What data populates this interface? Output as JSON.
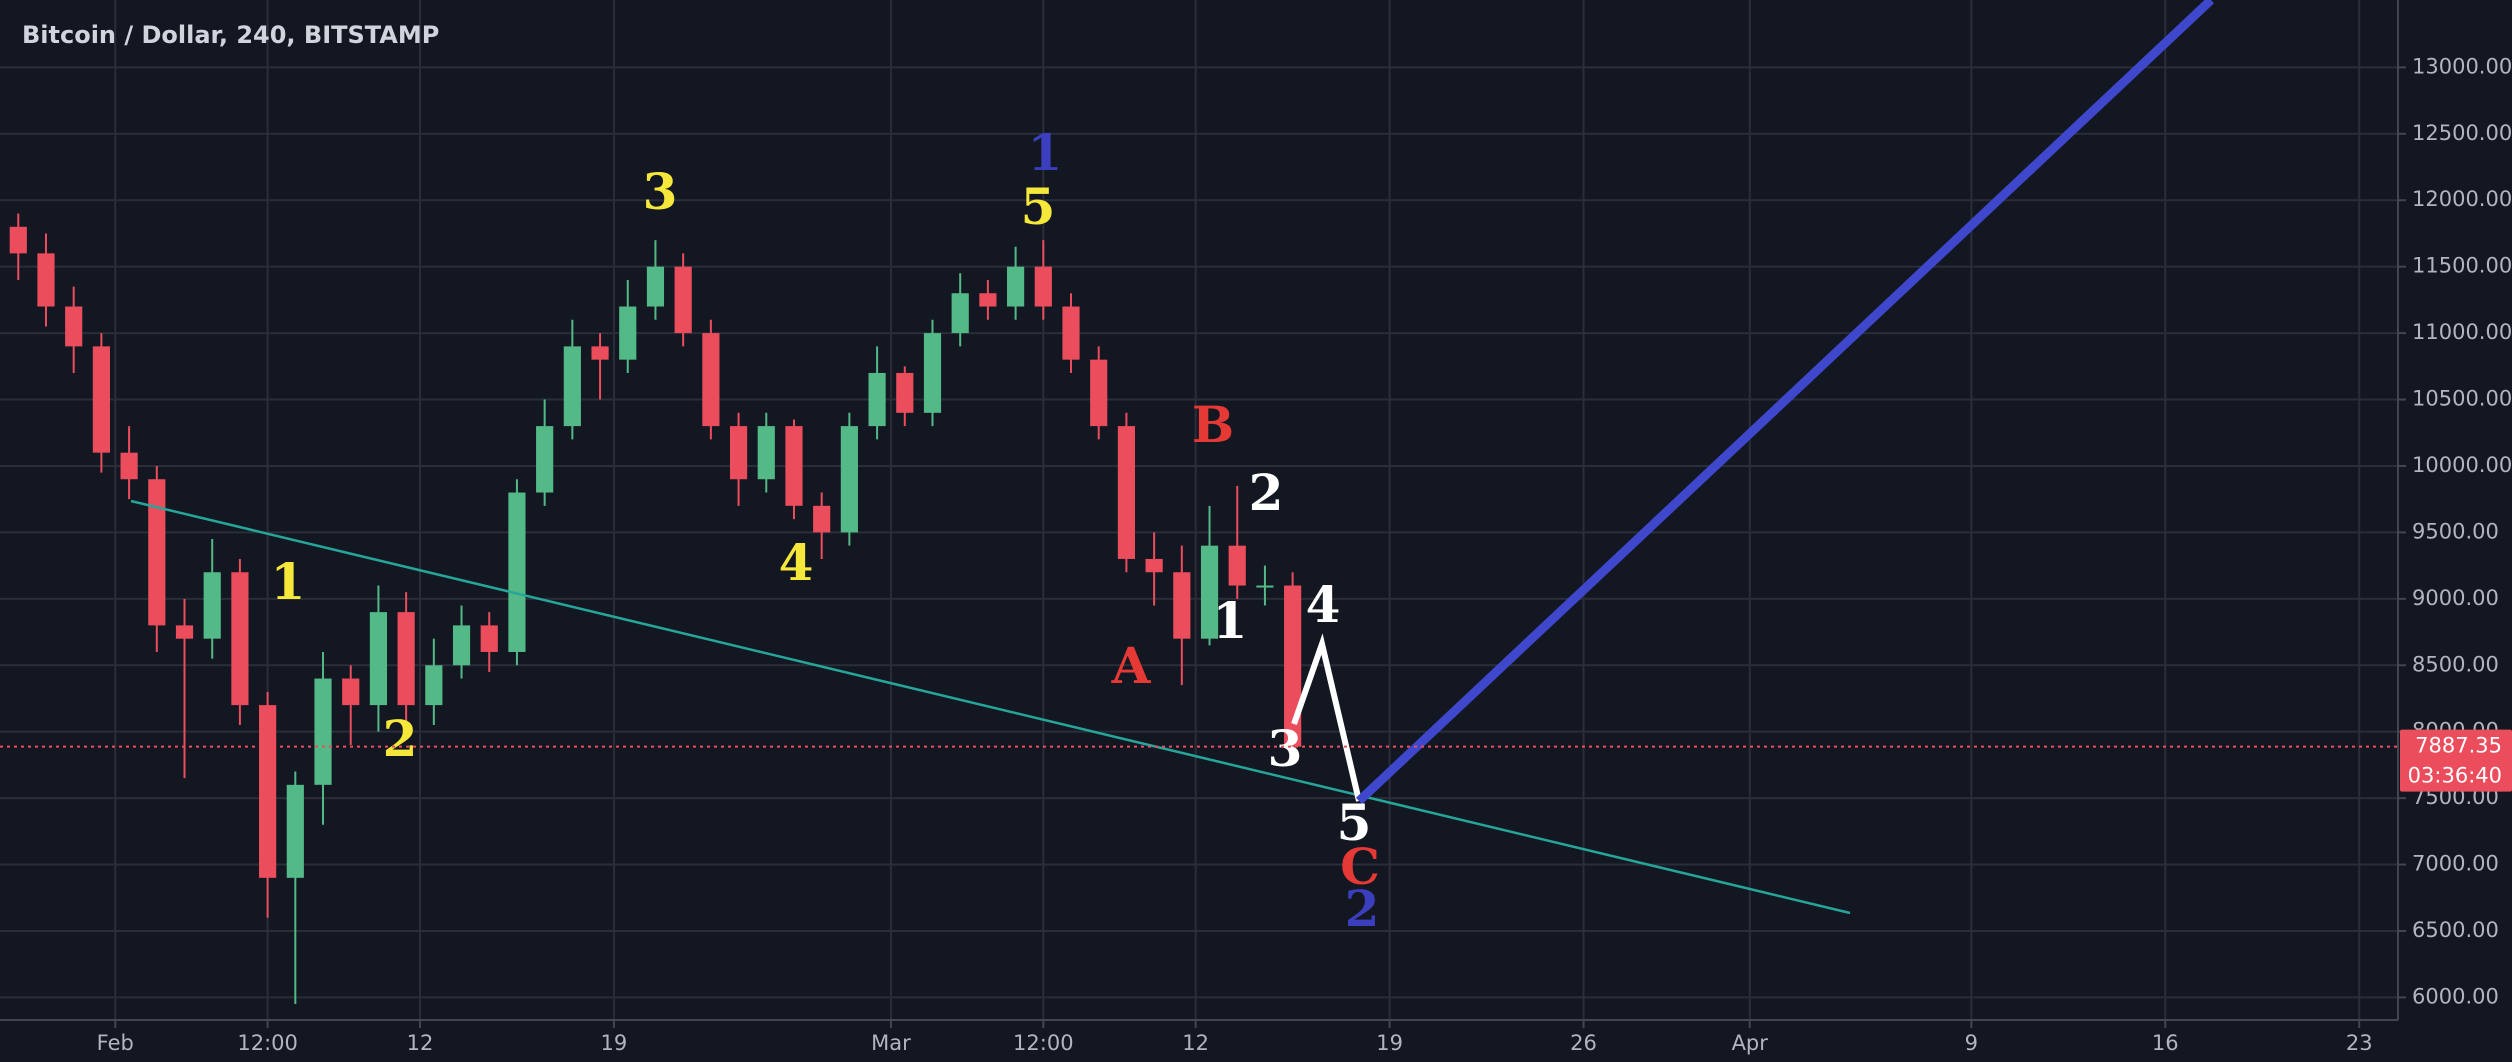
{
  "chart_data": {
    "type": "candlestick",
    "title": "Bitcoin / Dollar, 240, BITSTAMP",
    "x": [
      27.5,
      28.5,
      29.5,
      30.5,
      31.5,
      32.5,
      33.5,
      34.5,
      35.5,
      36.5,
      37.5,
      38.5,
      39.5,
      40.5,
      41.5,
      42.5,
      43.5,
      44.5,
      45.5,
      46.5,
      47.5,
      48.5,
      49.5,
      50.5,
      51.5,
      52.5,
      53.5,
      54.5,
      55.5,
      56.5,
      57.5,
      58.5,
      59.5,
      60.5,
      61.5,
      62.5,
      63.5,
      64.5,
      65.5,
      66.5,
      67.5,
      68.5,
      69.5,
      70.5,
      71.5,
      72.5,
      73.5
    ],
    "open": [
      11800,
      11600,
      11200,
      10900,
      10100,
      9900,
      8800,
      8700,
      9200,
      8200,
      6900,
      7600,
      8400,
      8200,
      8900,
      8200,
      8500,
      8800,
      8600,
      9800,
      10300,
      10900,
      10800,
      11200,
      11500,
      11000,
      10300,
      9900,
      10300,
      9700,
      9500,
      10300,
      10700,
      10400,
      11000,
      11300,
      11200,
      11500,
      11200,
      10800,
      10300,
      9300,
      9200,
      8700,
      9400,
      9100,
      9100
    ],
    "high": [
      11900,
      11750,
      11350,
      11000,
      10300,
      10000,
      9000,
      9450,
      9300,
      8300,
      7700,
      8600,
      8500,
      9100,
      9050,
      8700,
      8950,
      8900,
      9900,
      10500,
      11100,
      11000,
      11400,
      11700,
      11600,
      11100,
      10400,
      10400,
      10350,
      9800,
      10400,
      10900,
      10750,
      11100,
      11450,
      11400,
      11650,
      11700,
      11300,
      10900,
      10400,
      9500,
      9400,
      9700,
      9850,
      9250,
      9200
    ],
    "low": [
      11400,
      11050,
      10700,
      9950,
      9750,
      8600,
      7650,
      8550,
      8050,
      6600,
      5950,
      7300,
      7900,
      8000,
      8000,
      8050,
      8400,
      8450,
      8500,
      9700,
      10200,
      10500,
      10700,
      11100,
      10900,
      10200,
      9700,
      9800,
      9600,
      9300,
      9400,
      10200,
      10300,
      10300,
      10900,
      11100,
      11100,
      11100,
      10700,
      10200,
      9200,
      8950,
      8350,
      8650,
      9000,
      8950,
      7850
    ],
    "close": [
      11600,
      11200,
      10900,
      10100,
      9900,
      8800,
      8700,
      9200,
      8200,
      6900,
      7600,
      8400,
      8200,
      8900,
      8200,
      8500,
      8800,
      8600,
      9800,
      10300,
      10900,
      10800,
      11200,
      11500,
      11000,
      10300,
      9900,
      10300,
      9700,
      9500,
      10300,
      10700,
      10400,
      11000,
      11300,
      11200,
      11500,
      11200,
      10800,
      10300,
      9300,
      9200,
      8700,
      9400,
      9100,
      9100,
      7887
    ],
    "up_color": "#53b987",
    "down_color": "#eb4d5c",
    "xlim": [
      26.84,
      113.4
    ],
    "xticks": [
      {
        "value": 31,
        "label": "Feb"
      },
      {
        "value": 36.5,
        "label": "12:00"
      },
      {
        "value": 42,
        "label": "12"
      },
      {
        "value": 49,
        "label": "19"
      },
      {
        "value": 59,
        "label": "Mar"
      },
      {
        "value": 64.5,
        "label": "12:00"
      },
      {
        "value": 70,
        "label": "12"
      },
      {
        "value": 77,
        "label": "19"
      },
      {
        "value": 84,
        "label": "26"
      },
      {
        "value": 90,
        "label": "Apr"
      },
      {
        "value": 98,
        "label": "9"
      },
      {
        "value": 105,
        "label": "16"
      },
      {
        "value": 112,
        "label": "23"
      }
    ],
    "ylim": [
      5830,
      13507
    ],
    "yticks": [
      {
        "value": 6000,
        "label": "6000.00"
      },
      {
        "value": 6500,
        "label": "6500.00"
      },
      {
        "value": 7000,
        "label": "7000.00"
      },
      {
        "value": 7500,
        "label": "7500.00"
      },
      {
        "value": 8000,
        "label": "8000.00"
      },
      {
        "value": 8500,
        "label": "8500.00"
      },
      {
        "value": 9000,
        "label": "9000.00"
      },
      {
        "value": 9500,
        "label": "9500.00"
      },
      {
        "value": 10000,
        "label": "10000.00"
      },
      {
        "value": 10500,
        "label": "10500.00"
      },
      {
        "value": 11000,
        "label": "11000.00"
      },
      {
        "value": 11500,
        "label": "11500.00"
      },
      {
        "value": 12000,
        "label": "12000.00"
      },
      {
        "value": 12500,
        "label": "12500.00"
      },
      {
        "value": 13000,
        "label": "13000.00"
      }
    ],
    "grid": true,
    "last_price": 7887.35,
    "last_price_color": "#eb4d5c",
    "countdown": "03:36:40",
    "annotations": [
      {
        "text": "3",
        "color": "#f5e83a"
      },
      {
        "text": "5",
        "color": "#f5e83a"
      },
      {
        "text": "1",
        "color": "#3b3fbd"
      },
      {
        "text": "1",
        "color": "#f5e83a"
      },
      {
        "text": "2",
        "color": "#f5e83a"
      },
      {
        "text": "4",
        "color": "#f5e83a"
      },
      {
        "text": "B",
        "color": "#e53935"
      },
      {
        "text": "A",
        "color": "#e53935"
      },
      {
        "text": "2",
        "color": "#ffffff"
      },
      {
        "text": "1",
        "color": "#ffffff"
      },
      {
        "text": "4",
        "color": "#ffffff"
      },
      {
        "text": "3",
        "color": "#ffffff"
      },
      {
        "text": "5",
        "color": "#ffffff"
      },
      {
        "text": "C",
        "color": "#e53935"
      },
      {
        "text": "2",
        "color": "#3b3fbd"
      }
    ]
  }
}
